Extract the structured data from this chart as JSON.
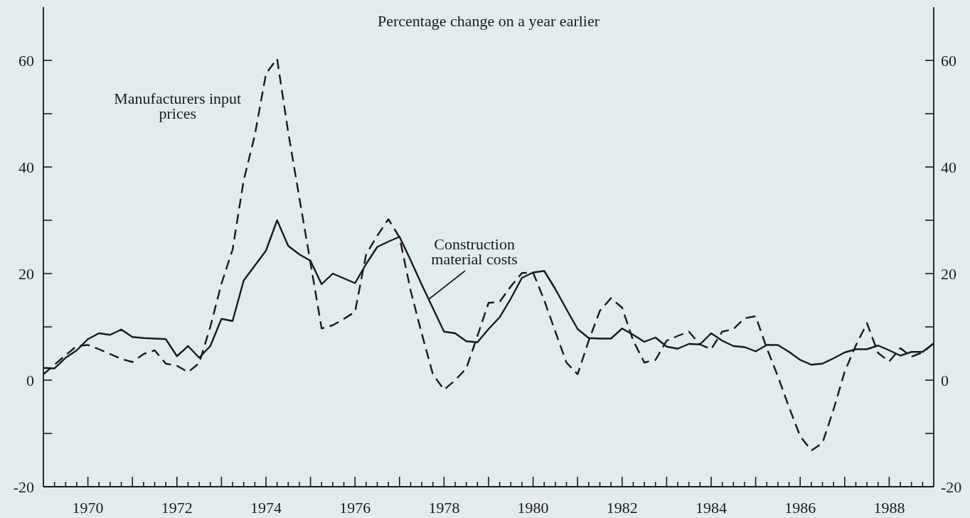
{
  "chart_data": {
    "type": "line",
    "title": "Percentage change on a year earlier",
    "x": [
      1969,
      1969.25,
      1969.5,
      1969.75,
      1970,
      1970.25,
      1970.5,
      1970.75,
      1971,
      1971.25,
      1971.5,
      1971.75,
      1972,
      1972.25,
      1972.5,
      1972.75,
      1973,
      1973.25,
      1973.5,
      1973.75,
      1974,
      1974.25,
      1974.5,
      1974.75,
      1975,
      1975.25,
      1975.5,
      1975.75,
      1976,
      1976.25,
      1976.5,
      1976.75,
      1977,
      1977.25,
      1977.5,
      1977.75,
      1978,
      1978.25,
      1978.5,
      1978.75,
      1979,
      1979.25,
      1979.5,
      1979.75,
      1980,
      1980.25,
      1980.5,
      1980.75,
      1981,
      1981.25,
      1981.5,
      1981.75,
      1982,
      1982.25,
      1982.5,
      1982.75,
      1983,
      1983.25,
      1983.5,
      1983.75,
      1984,
      1984.25,
      1984.5,
      1984.75,
      1985,
      1985.25,
      1985.5,
      1985.75,
      1986,
      1986.25,
      1986.5,
      1986.75,
      1987,
      1987.25,
      1987.5,
      1987.75,
      1988,
      1988.25,
      1988.5,
      1988.75,
      1989
    ],
    "series": [
      {
        "color": "#1a1a1a",
        "line_style": "solid",
        "values": [
          2.3,
          2.2,
          4.2,
          5.6,
          7.7,
          8.8,
          8.5,
          9.5,
          8.1,
          7.9,
          7.8,
          7.7,
          4.5,
          6.4,
          4.2,
          6.4,
          11.5,
          11.1,
          18.7,
          21.5,
          24.3,
          30.0,
          25.2,
          23.6,
          22.4,
          18.0,
          20.0,
          19.1,
          18.2,
          21.8,
          25.0,
          26.0,
          26.9,
          22.5,
          17.9,
          13.5,
          9.1,
          8.8,
          7.3,
          7.1,
          9.6,
          11.8,
          15.3,
          19.2,
          20.2,
          20.5,
          17.1,
          13.3,
          9.6,
          7.9,
          7.8,
          7.8,
          9.7,
          8.5,
          7.2,
          8.0,
          6.3,
          5.9,
          6.8,
          6.7,
          8.8,
          7.4,
          6.4,
          6.2,
          5.4,
          6.6,
          6.6,
          5.3,
          3.8,
          2.9,
          3.1,
          4.1,
          5.2,
          5.8,
          5.8,
          6.5,
          5.6,
          4.6,
          5.3,
          5.3,
          6.9
        ]
      },
      {
        "color": "#1a1a1a",
        "line_style": "dashed",
        "values": [
          1.1,
          2.9,
          4.7,
          6.4,
          6.6,
          5.8,
          4.9,
          4.0,
          3.4,
          4.9,
          5.6,
          3.1,
          2.7,
          1.5,
          3.2,
          10.0,
          18.1,
          24.5,
          37.5,
          46.0,
          57.5,
          60.3,
          46.5,
          34.2,
          22.0,
          9.7,
          10.3,
          11.5,
          12.8,
          23.6,
          27.1,
          30.2,
          26.8,
          16.8,
          8.7,
          1.1,
          -1.8,
          0.0,
          2.2,
          8.3,
          14.5,
          14.7,
          17.6,
          20.1,
          20.2,
          15.0,
          9.1,
          3.3,
          1.1,
          7.4,
          13.0,
          15.4,
          13.6,
          7.4,
          3.3,
          3.8,
          7.4,
          8.3,
          9.1,
          6.7,
          5.8,
          9.1,
          9.6,
          11.6,
          12.0,
          6.0,
          0.7,
          -5.1,
          -10.5,
          -13.2,
          -11.8,
          -5.5,
          1.6,
          6.5,
          10.7,
          5.1,
          3.5,
          6.0,
          4.4,
          5.2,
          6.9
        ]
      }
    ],
    "annotations": [
      {
        "text": "Manufacturers input prices",
        "x": 1973.9,
        "y": 53
      },
      {
        "text": "Construction material costs",
        "x": 1977.66,
        "y": 15.2
      }
    ],
    "xlim": [
      1969,
      1989
    ],
    "xticks": [
      {
        "value": 1969.25,
        "label": null
      },
      {
        "value": 1969.5,
        "label": null
      },
      {
        "value": 1969.75,
        "label": null
      },
      1970,
      {
        "value": 1970.25,
        "label": null
      },
      {
        "value": 1970.5,
        "label": null
      },
      {
        "value": 1970.75,
        "label": null
      },
      {
        "value": 1971,
        "label": null
      },
      {
        "value": 1971.25,
        "label": null
      },
      {
        "value": 1971.5,
        "label": null
      },
      {
        "value": 1971.75,
        "label": null
      },
      1972,
      {
        "value": 1972.25,
        "label": null
      },
      {
        "value": 1972.5,
        "label": null
      },
      {
        "value": 1972.75,
        "label": null
      },
      {
        "value": 1973,
        "label": null
      },
      {
        "value": 1973.25,
        "label": null
      },
      {
        "value": 1973.5,
        "label": null
      },
      {
        "value": 1973.75,
        "label": null
      },
      1974,
      {
        "value": 1974.25,
        "label": null
      },
      {
        "value": 1974.5,
        "label": null
      },
      {
        "value": 1974.75,
        "label": null
      },
      {
        "value": 1975,
        "label": null
      },
      {
        "value": 1975.25,
        "label": null
      },
      {
        "value": 1975.5,
        "label": null
      },
      {
        "value": 1975.75,
        "label": null
      },
      1976,
      {
        "value": 1976.25,
        "label": null
      },
      {
        "value": 1976.5,
        "label": null
      },
      {
        "value": 1976.75,
        "label": null
      },
      {
        "value": 1977,
        "label": null
      },
      {
        "value": 1977.25,
        "label": null
      },
      {
        "value": 1977.5,
        "label": null
      },
      {
        "value": 1977.75,
        "label": null
      },
      1978,
      {
        "value": 1978.25,
        "label": null
      },
      {
        "value": 1978.5,
        "label": null
      },
      {
        "value": 1978.75,
        "label": null
      },
      {
        "value": 1979,
        "label": null
      },
      {
        "value": 1979.25,
        "label": null
      },
      {
        "value": 1979.5,
        "label": null
      },
      {
        "value": 1979.75,
        "label": null
      },
      1980,
      {
        "value": 1980.25,
        "label": null
      },
      {
        "value": 1980.5,
        "label": null
      },
      {
        "value": 1980.75,
        "label": null
      },
      {
        "value": 1981,
        "label": null
      },
      {
        "value": 1981.25,
        "label": null
      },
      {
        "value": 1981.5,
        "label": null
      },
      {
        "value": 1981.75,
        "label": null
      },
      1982,
      {
        "value": 1982.25,
        "label": null
      },
      {
        "value": 1982.5,
        "label": null
      },
      {
        "value": 1982.75,
        "label": null
      },
      {
        "value": 1983,
        "label": null
      },
      {
        "value": 1983.25,
        "label": null
      },
      {
        "value": 1983.5,
        "label": null
      },
      {
        "value": 1983.75,
        "label": null
      },
      1984,
      {
        "value": 1984.25,
        "label": null
      },
      {
        "value": 1984.5,
        "label": null
      },
      {
        "value": 1984.75,
        "label": null
      },
      {
        "value": 1985,
        "label": null
      },
      {
        "value": 1985.25,
        "label": null
      },
      {
        "value": 1985.5,
        "label": null
      },
      {
        "value": 1985.75,
        "label": null
      },
      1986,
      {
        "value": 1986.25,
        "label": null
      },
      {
        "value": 1986.5,
        "label": null
      },
      {
        "value": 1986.75,
        "label": null
      },
      {
        "value": 1987,
        "label": null
      },
      {
        "value": 1987.25,
        "label": null
      },
      {
        "value": 1987.5,
        "label": null
      },
      {
        "value": 1987.75,
        "label": null
      },
      1988,
      {
        "value": 1988.25,
        "label": null
      },
      {
        "value": 1988.5,
        "label": null
      },
      {
        "value": 1988.75,
        "label": null
      }
    ],
    "ylim": [
      -20,
      70
    ],
    "yticks": [
      -20,
      {
        "value": -10,
        "label": null
      },
      0,
      {
        "value": 10,
        "label": null
      },
      20,
      {
        "value": 30,
        "label": null
      },
      40,
      {
        "value": 50,
        "label": null
      },
      60
    ],
    "y2lim": [
      -20,
      70
    ],
    "y2ticks": [
      -20,
      {
        "value": -10,
        "label": null
      },
      0,
      {
        "value": 10,
        "label": null
      },
      20,
      {
        "value": 30,
        "label": null
      },
      40,
      {
        "value": 50,
        "label": null
      },
      60
    ]
  }
}
